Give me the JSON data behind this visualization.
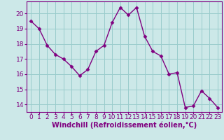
{
  "x": [
    0,
    1,
    2,
    3,
    4,
    5,
    6,
    7,
    8,
    9,
    10,
    11,
    12,
    13,
    14,
    15,
    16,
    17,
    18,
    19,
    20,
    21,
    22,
    23
  ],
  "y": [
    19.5,
    19.0,
    17.9,
    17.3,
    17.0,
    16.5,
    15.9,
    16.3,
    17.5,
    17.9,
    19.4,
    20.4,
    19.9,
    20.4,
    18.5,
    17.5,
    17.2,
    16.0,
    16.1,
    13.8,
    13.9,
    14.9,
    14.4,
    13.8
  ],
  "line_color": "#800080",
  "marker": "D",
  "marker_size": 2.5,
  "bg_color": "#cce8e8",
  "grid_color": "#99cccc",
  "xlabel": "Windchill (Refroidissement éolien,°C)",
  "xlabel_color": "#800080",
  "tick_color": "#800080",
  "spine_color": "#800080",
  "ylim": [
    13.5,
    20.8
  ],
  "xlim": [
    -0.5,
    23.5
  ],
  "yticks": [
    14,
    15,
    16,
    17,
    18,
    19,
    20
  ],
  "xticks": [
    0,
    1,
    2,
    3,
    4,
    5,
    6,
    7,
    8,
    9,
    10,
    11,
    12,
    13,
    14,
    15,
    16,
    17,
    18,
    19,
    20,
    21,
    22,
    23
  ],
  "tick_fontsize": 6.5,
  "xlabel_fontsize": 7.0
}
